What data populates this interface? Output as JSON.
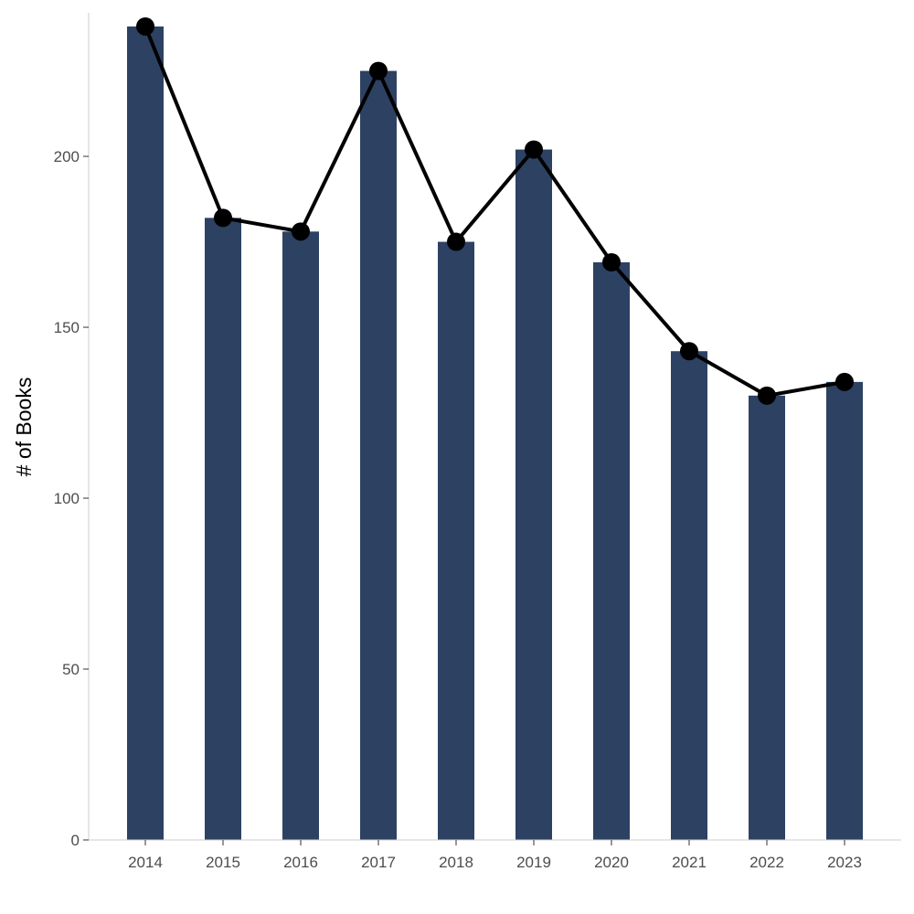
{
  "chart_data": {
    "type": "bar",
    "categories": [
      "2014",
      "2015",
      "2016",
      "2017",
      "2018",
      "2019",
      "2020",
      "2021",
      "2022",
      "2023"
    ],
    "values": [
      238,
      182,
      178,
      225,
      175,
      202,
      169,
      143,
      130,
      134
    ],
    "overlay": {
      "type": "line",
      "with_points": true,
      "values": [
        238,
        182,
        178,
        225,
        175,
        202,
        169,
        143,
        130,
        134
      ]
    },
    "title": "",
    "xlabel": "",
    "ylabel": "# of Books",
    "ylim": [
      0,
      242
    ],
    "yticks": [
      0,
      50,
      100,
      150,
      200
    ],
    "grid": false,
    "legend": "none",
    "colors": {
      "bar": "#2d4163",
      "line": "#000000",
      "point": "#000000",
      "axis": "#cccccc",
      "tick_text": "#4d4d4d"
    }
  }
}
